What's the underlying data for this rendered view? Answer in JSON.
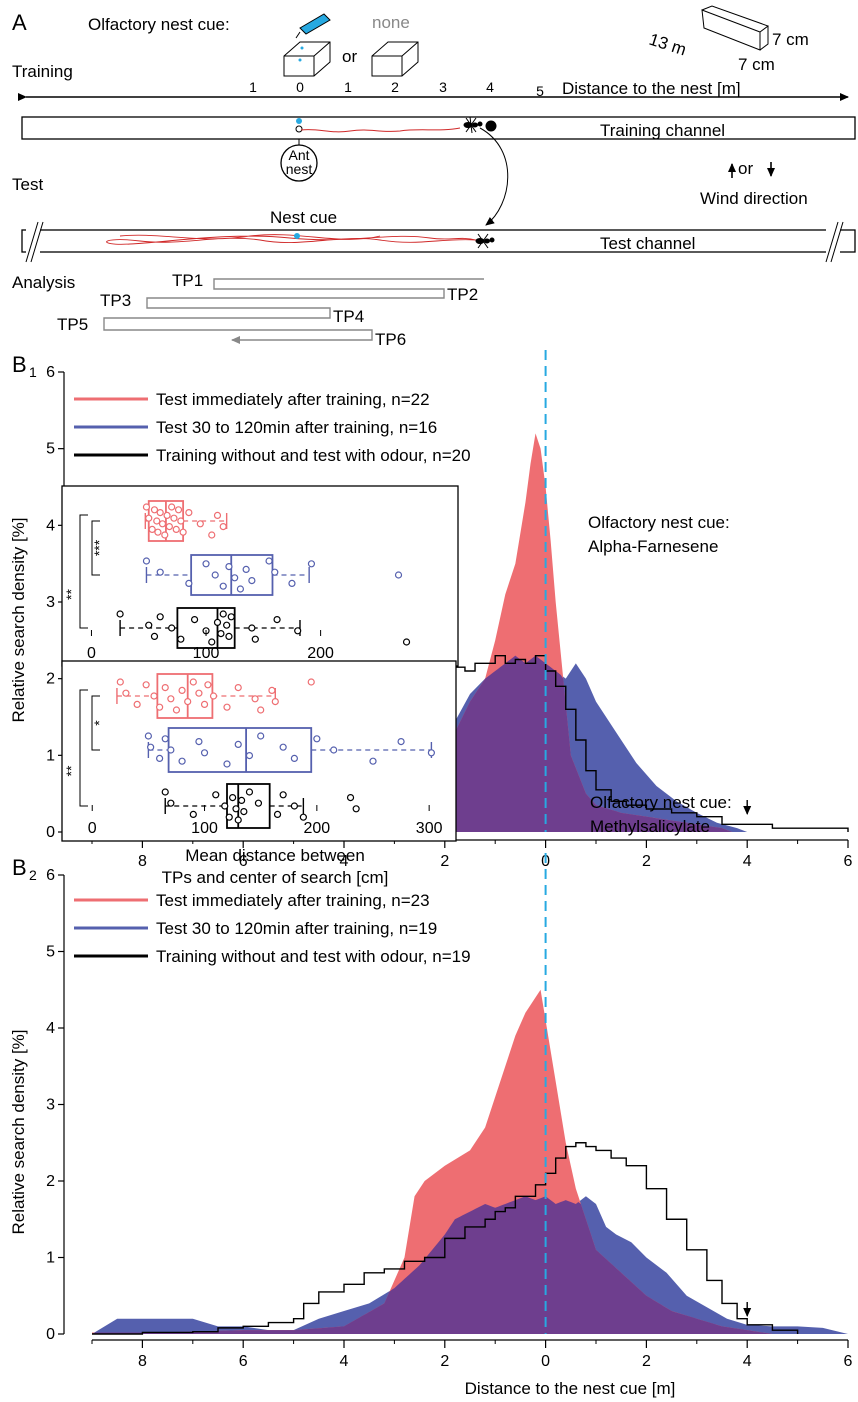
{
  "colors": {
    "red": "#EE6E72",
    "blue": "#5560AE",
    "purple": "#6E3E8E",
    "black": "#000000",
    "cyan": "#27A9E1",
    "trajectory": "#D02828",
    "grey": "#888888"
  },
  "panel_a": {
    "letter": "A",
    "olfactory_label": "Olfactory nest cue:",
    "none_label": "none",
    "or_label": "or",
    "training_label": "Training",
    "test_label": "Test",
    "analysis_label": "Analysis",
    "channel_dims": [
      "13 m",
      "7 cm",
      "7 cm"
    ],
    "distance_label": "Distance to the nest [m]",
    "distance_ticks": [
      "1",
      "0",
      "1",
      "2",
      "3",
      "4",
      "5"
    ],
    "training_channel": "Training channel",
    "test_channel": "Test channel",
    "ant_nest": [
      "Ant",
      "nest"
    ],
    "nest_cue": "Nest cue",
    "wind_or": "or",
    "wind_label": "Wind direction",
    "tps": [
      "TP1",
      "TP2",
      "TP3",
      "TP4",
      "TP5",
      "TP6"
    ]
  },
  "chart_data": [
    {
      "type": "area",
      "panel": "B1",
      "panel_letter": "B",
      "panel_sub": "1",
      "ylabel": "Relative search density [%]",
      "xlabel": "",
      "x_ticks": [
        "8",
        "6",
        "4",
        "2",
        "0",
        "2",
        "4",
        "6"
      ],
      "y_ticks": [
        "0",
        "1",
        "2",
        "3",
        "4",
        "5",
        "6"
      ],
      "xlim": [
        -9,
        6
      ],
      "ylim": [
        0,
        6
      ],
      "annotation": [
        "Olfactory nest cue:",
        "Alpha-Farnesene"
      ],
      "legend": [
        "Test immediately after training, n=22",
        "Test 30 to 120min after training, n=16",
        "Training without and test with odour, n=20"
      ],
      "series": [
        {
          "name": "Test immediately after training, n=22",
          "x": [
            -7.5,
            -6,
            -5,
            -4.7,
            -4.5,
            -4,
            -3,
            -2.5,
            -2,
            -1.9,
            -1.8,
            -1.5,
            -1.2,
            -1,
            -0.8,
            -0.6,
            -0.5,
            -0.4,
            -0.3,
            -0.2,
            -0.1,
            0,
            0.1,
            0.2,
            0.35,
            0.5,
            0.8,
            1,
            1.5,
            2,
            2.5,
            3,
            3.5,
            3.7
          ],
          "y": [
            0,
            0,
            0,
            0,
            0.15,
            0.15,
            0.2,
            0.3,
            0.5,
            1.0,
            1.3,
            1.7,
            2.0,
            2.5,
            3.1,
            3.5,
            3.9,
            4.3,
            4.8,
            5.2,
            5.0,
            4.5,
            3.8,
            3.0,
            2.0,
            1.0,
            0.5,
            0.35,
            0.25,
            0.2,
            0.15,
            0.1,
            0.05,
            0
          ]
        },
        {
          "name": "Test 30 to 120min after training, n=16",
          "x": [
            -8.5,
            -8,
            -7,
            -6,
            -5,
            -4,
            -3,
            -2.5,
            -2,
            -1.5,
            -1.2,
            -1,
            -0.8,
            -0.6,
            -0.4,
            -0.2,
            0,
            0.2,
            0.4,
            0.6,
            0.8,
            1,
            1.4,
            1.8,
            2.2,
            2.6,
            3,
            3.4,
            3.8,
            4
          ],
          "y": [
            0,
            0.1,
            0.2,
            0.2,
            0.25,
            0.25,
            0.5,
            0.7,
            1.2,
            1.8,
            2.0,
            2.1,
            2.2,
            2.3,
            2.2,
            2.3,
            2.2,
            2.1,
            2.0,
            2.2,
            2.0,
            1.7,
            1.3,
            0.9,
            0.6,
            0.4,
            0.25,
            0.12,
            0.05,
            0
          ]
        },
        {
          "name": "Training without and test with odour, n=20",
          "x": [
            -9,
            -8.2,
            -7.2,
            -6.8,
            -6.5,
            -5.8,
            -5,
            -4.7,
            -4.4,
            -4,
            -3.6,
            -3.2,
            -3,
            -2.8,
            -2.6,
            -2.3,
            -2.1,
            -2,
            -1.8,
            -1.6,
            -1.4,
            -1.2,
            -1,
            -0.8,
            -0.6,
            -0.4,
            -0.2,
            0,
            0.2,
            0.4,
            0.6,
            0.8,
            1,
            1.3,
            1.6,
            2,
            2.5,
            3,
            3.5,
            4,
            4.5,
            5,
            5.5,
            5.8,
            6
          ],
          "y": [
            0.03,
            0.05,
            0.1,
            0.2,
            0.2,
            0.25,
            0.4,
            0.6,
            0.9,
            1.1,
            1.3,
            1.45,
            1.55,
            1.6,
            1.9,
            2.1,
            2.0,
            1.7,
            2.15,
            2.1,
            2.2,
            2.2,
            2.3,
            2.2,
            2.25,
            2.2,
            2.3,
            2.1,
            1.9,
            1.6,
            1.2,
            0.8,
            0.55,
            0.4,
            0.35,
            0.3,
            0.25,
            0.2,
            0.1,
            0.1,
            0.05,
            0.05,
            0.05,
            0.05,
            0
          ]
        }
      ],
      "nest_arrow_x": 4,
      "inset": {
        "type": "box",
        "xlabel": "Mean distance between TPs and center of search [cm]",
        "xlim": [
          -10,
          285
        ],
        "x_ticks": [
          "0",
          "100",
          "200"
        ],
        "significance": [
          "***",
          "**"
        ],
        "boxes": [
          {
            "name": "Test immediately after training",
            "whisker_low": 47,
            "q1": 50,
            "median": 65,
            "q3": 80,
            "whisker_high": 118,
            "points": [
              48,
              50,
              53,
              55,
              57,
              58,
              60,
              62,
              64,
              66,
              68,
              70,
              72,
              74,
              76,
              78,
              80,
              85,
              95,
              105,
              110,
              115
            ]
          },
          {
            "name": "Test 30 to 120min after training",
            "whisker_low": 48,
            "q1": 87,
            "median": 122,
            "q3": 158,
            "whisker_high": 190,
            "points": [
              48,
              60,
              85,
              100,
              108,
              115,
              120,
              125,
              130,
              135,
              140,
              155,
              160,
              175,
              192,
              268
            ]
          },
          {
            "name": "Training without and test with odour",
            "whisker_low": 25,
            "q1": 75,
            "median": 110,
            "q3": 125,
            "whisker_high": 182,
            "points": [
              25,
              50,
              55,
              60,
              70,
              78,
              90,
              100,
              105,
              110,
              113,
              115,
              118,
              120,
              122,
              140,
              143,
              162,
              180,
              275
            ]
          }
        ]
      }
    },
    {
      "type": "area",
      "panel": "B2",
      "panel_letter": "B",
      "panel_sub": "2",
      "ylabel": "Relative search density [%]",
      "xlabel": "Distance to the nest cue [m]",
      "x_ticks": [
        "8",
        "6",
        "4",
        "2",
        "0",
        "2",
        "4",
        "6"
      ],
      "y_ticks": [
        "0",
        "1",
        "2",
        "3",
        "4",
        "5",
        "6"
      ],
      "xlim": [
        -9,
        6
      ],
      "ylim": [
        0,
        6
      ],
      "annotation": [
        "Olfactory nest cue:",
        "Methylsalicylate"
      ],
      "legend": [
        "Test immediately after training, n=23",
        "Test 30 to 120min after training, n=19",
        "Training without and test with odour, n=19"
      ],
      "series": [
        {
          "name": "Test immediately after training, n=23",
          "x": [
            -9,
            -8,
            -7,
            -6,
            -5,
            -4,
            -3.2,
            -2.8,
            -2.6,
            -2.4,
            -2,
            -1.5,
            -1.2,
            -1,
            -0.8,
            -0.6,
            -0.4,
            -0.2,
            -0.1,
            0,
            0.2,
            0.4,
            0.6,
            0.8,
            1,
            1.5,
            2,
            2.5,
            3,
            3.5,
            4,
            4.5
          ],
          "y": [
            0.02,
            0.02,
            0.03,
            0.05,
            0.05,
            0.1,
            0.4,
            1.0,
            1.8,
            2.0,
            2.2,
            2.4,
            2.7,
            3.1,
            3.5,
            3.9,
            4.2,
            4.4,
            4.5,
            4.1,
            3.3,
            2.5,
            1.9,
            1.5,
            1.1,
            0.8,
            0.5,
            0.3,
            0.2,
            0.1,
            0.05,
            0
          ]
        },
        {
          "name": "Test 30 to 120min after training, n=19",
          "x": [
            -9,
            -8.5,
            -7,
            -6.5,
            -6,
            -5.5,
            -5,
            -4.5,
            -4,
            -3.5,
            -3,
            -2.5,
            -2,
            -1.8,
            -1.5,
            -1.2,
            -1,
            -0.8,
            -0.6,
            -0.4,
            -0.2,
            0,
            0.2,
            0.4,
            0.6,
            0.8,
            1,
            1.2,
            1.4,
            1.7,
            2,
            2.4,
            2.8,
            3.2,
            3.6,
            4,
            4.5,
            5,
            5.5,
            6
          ],
          "y": [
            0,
            0.2,
            0.2,
            0.1,
            0.1,
            0.05,
            0.05,
            0.2,
            0.3,
            0.4,
            0.6,
            0.9,
            1.3,
            1.5,
            1.6,
            1.7,
            1.65,
            1.7,
            1.75,
            1.8,
            1.75,
            1.8,
            1.7,
            1.75,
            1.7,
            1.8,
            1.7,
            1.4,
            1.3,
            1.2,
            1.0,
            0.8,
            0.5,
            0.35,
            0.2,
            0.12,
            0.1,
            0.1,
            0.08,
            0
          ]
        },
        {
          "name": "Training without and test with odour, n=19",
          "x": [
            -9,
            -8,
            -7,
            -6.5,
            -6,
            -5.5,
            -5,
            -4.8,
            -4.5,
            -4,
            -3.6,
            -3.2,
            -2.8,
            -2.4,
            -2,
            -1.6,
            -1.2,
            -1,
            -0.8,
            -0.6,
            -0.4,
            -0.2,
            0,
            0.2,
            0.4,
            0.6,
            0.8,
            1,
            1.3,
            1.6,
            2,
            2.4,
            2.8,
            3.2,
            3.5,
            3.8,
            4,
            4.5,
            5
          ],
          "y": [
            0,
            0.02,
            0.03,
            0.08,
            0.1,
            0.15,
            0.2,
            0.4,
            0.55,
            0.65,
            0.8,
            0.85,
            0.95,
            1.0,
            1.25,
            1.4,
            1.5,
            1.6,
            1.65,
            1.8,
            1.8,
            1.95,
            2.1,
            2.3,
            2.45,
            2.5,
            2.45,
            2.4,
            2.3,
            2.2,
            1.9,
            1.5,
            1.1,
            0.7,
            0.4,
            0.2,
            0.12,
            0.05,
            0
          ]
        }
      ],
      "nest_arrow_x": 4,
      "inset": {
        "type": "box",
        "xlabel": "Mean distance between TPs and center of search [cm]",
        "xlim": [
          -10,
          315
        ],
        "x_ticks": [
          "0",
          "100",
          "200",
          "300"
        ],
        "significance": [
          "*",
          "**"
        ],
        "boxes": [
          {
            "name": "Test immediately after training",
            "whisker_low": 22,
            "q1": 58,
            "median": 85,
            "q3": 107,
            "whisker_high": 163,
            "points": [
              25,
              30,
              40,
              48,
              55,
              60,
              65,
              70,
              75,
              80,
              85,
              90,
              95,
              100,
              103,
              108,
              120,
              130,
              145,
              150,
              160,
              163,
              195
            ]
          },
          {
            "name": "Test 30 to 120min after training",
            "whisker_low": 50,
            "q1": 68,
            "median": 137,
            "q3": 195,
            "whisker_high": 302,
            "points": [
              50,
              52,
              60,
              65,
              70,
              80,
              95,
              100,
              120,
              130,
              140,
              150,
              170,
              180,
              200,
              215,
              250,
              275,
              302
            ]
          },
          {
            "name": "Training without and test with odour",
            "whisker_low": 65,
            "q1": 120,
            "median": 130,
            "q3": 158,
            "whisker_high": 188,
            "points": [
              65,
              70,
              90,
              110,
              118,
              122,
              125,
              128,
              130,
              133,
              135,
              140,
              148,
              165,
              170,
              180,
              188,
              230,
              235
            ]
          }
        ]
      }
    }
  ]
}
